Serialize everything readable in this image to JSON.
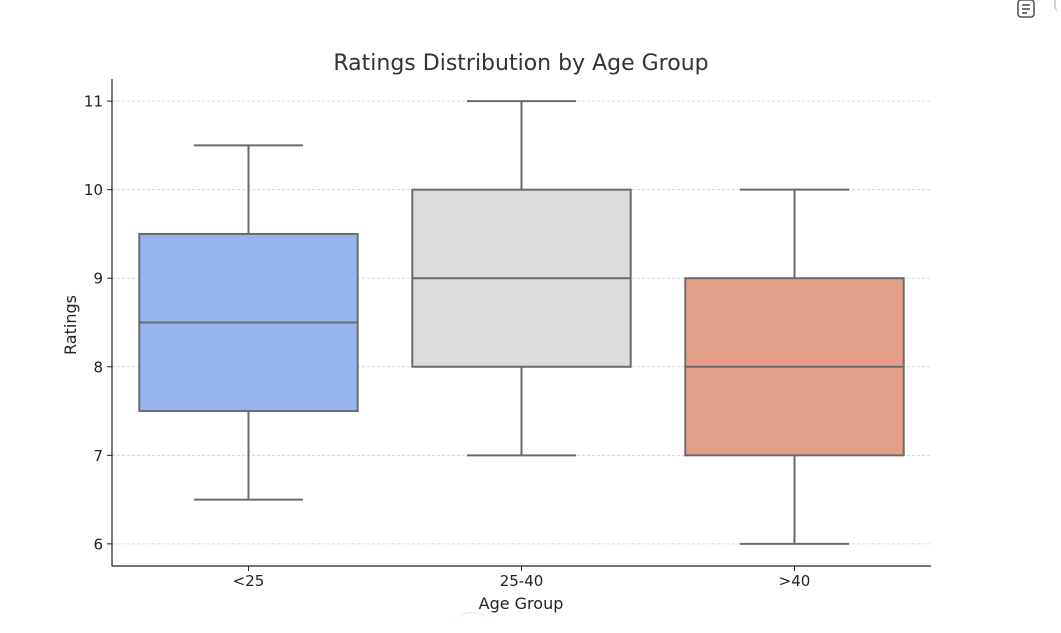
{
  "chart_data": {
    "type": "box",
    "title": "Ratings Distribution by Age Group",
    "xlabel": "Age Group",
    "ylabel": "Ratings",
    "ylim": [
      5.75,
      11.25
    ],
    "yticks": [
      6,
      7,
      8,
      9,
      10,
      11
    ],
    "grid": "horizontal-dashed",
    "categories": [
      "<25",
      "25-40",
      ">40"
    ],
    "boxes": [
      {
        "category": "<25",
        "whisker_low": 6.5,
        "q1": 7.5,
        "median": 8.5,
        "q3": 9.5,
        "whisker_high": 10.5,
        "color": "#98b4ef"
      },
      {
        "category": "25-40",
        "whisker_low": 7,
        "q1": 8,
        "median": 9,
        "q3": 10,
        "whisker_high": 11,
        "color": "#dcdcdc"
      },
      {
        "category": ">40",
        "whisker_low": 6,
        "q1": 7,
        "median": 8,
        "q3": 9,
        "whisker_high": 10,
        "color": "#e39f88"
      }
    ],
    "line_color": "#6b6b6b"
  },
  "ui": {
    "corner_icon": "document-icon"
  }
}
